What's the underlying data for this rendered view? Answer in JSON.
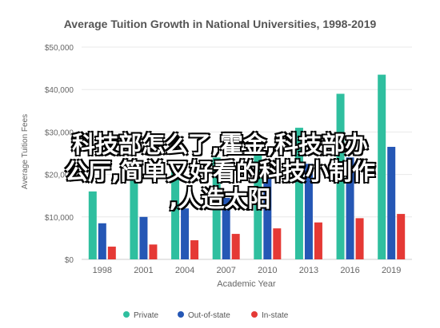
{
  "chart_data": {
    "type": "bar",
    "title": "Average Tuition Growth in National Universities, 1998-2019",
    "xlabel": "Academic Year",
    "ylabel": "Average Tuition Fees",
    "categories": [
      "1998",
      "2001",
      "2004",
      "2007",
      "2010",
      "2013",
      "2016",
      "2019"
    ],
    "ylim": [
      0,
      50000
    ],
    "yticks": [
      0,
      10000,
      20000,
      30000,
      40000,
      50000
    ],
    "ytick_labels": [
      "$0",
      "$10,000",
      "$20,000",
      "$30,000",
      "$40,000",
      "$50,000"
    ],
    "grid": true,
    "legend_position": "bottom",
    "series": [
      {
        "name": "Private",
        "color": "#2fbf9f",
        "values": [
          16000,
          18500,
          21000,
          24000,
          27500,
          31000,
          39000,
          43500
        ]
      },
      {
        "name": "Out-of-state",
        "color": "#2557b5",
        "values": [
          8500,
          10000,
          12000,
          14500,
          19000,
          22500,
          24000,
          26500
        ]
      },
      {
        "name": "In-state",
        "color": "#e53935",
        "values": [
          3000,
          3500,
          4500,
          6000,
          7300,
          8700,
          9700,
          10700
        ]
      }
    ]
  },
  "overlay_text": {
    "line1": "科技部怎么了,霍金,科技部办",
    "line2": "公厅,简单又好看的科技小制作",
    "line3": ",人造太阳"
  }
}
